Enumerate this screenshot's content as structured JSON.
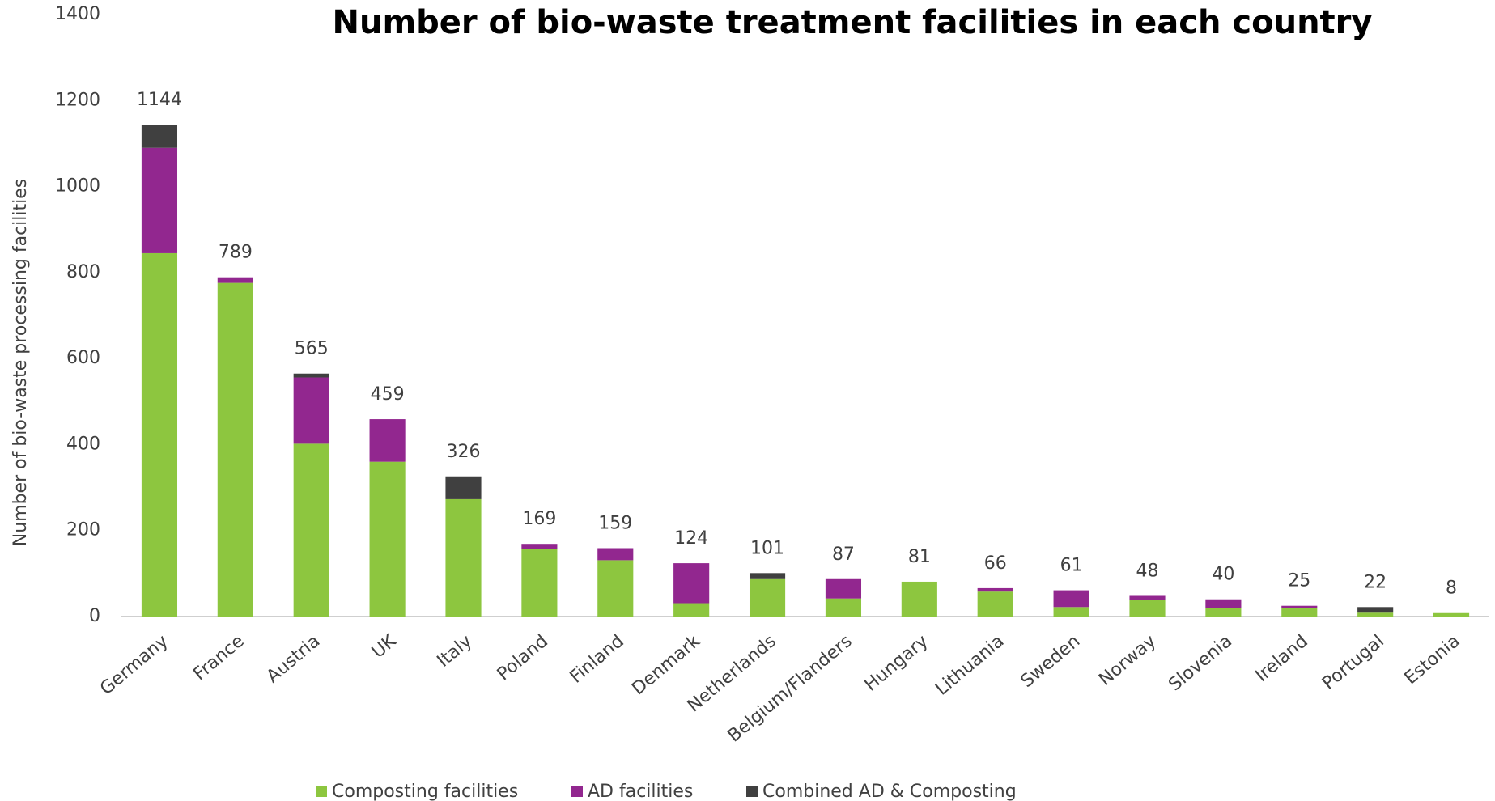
{
  "chart_data": {
    "type": "stacked_bar",
    "title": "Number of bio-waste treatment facilities in each country",
    "y_label": "Number of bio-waste processing facilities",
    "categories": [
      "Germany",
      "France",
      "Austria",
      "UK",
      "Italy",
      "Poland",
      "Finland",
      "Denmark",
      "Netherlands",
      "Belgium/Flanders",
      "Hungary",
      "Lithuania",
      "Sweden",
      "Norway",
      "Slovenia",
      "Ireland",
      "Portugal",
      "Estonia"
    ],
    "series": [
      {
        "name": "Composting facilities",
        "color": "#8dc63f",
        "values": [
          845,
          776,
          402,
          360,
          273,
          158,
          131,
          31,
          87,
          42,
          81,
          58,
          22,
          38,
          20,
          20,
          9,
          8
        ]
      },
      {
        "name": "AD facilities",
        "color": "#92278f",
        "values": [
          245,
          13,
          154,
          99,
          0,
          11,
          28,
          93,
          0,
          45,
          0,
          8,
          39,
          10,
          20,
          5,
          0,
          0
        ]
      },
      {
        "name": "Combined AD & Composting",
        "color": "#404040",
        "values": [
          54,
          0,
          9,
          0,
          53,
          0,
          0,
          0,
          14,
          0,
          0,
          0,
          0,
          0,
          0,
          0,
          13,
          0
        ]
      }
    ],
    "totals": [
      1144,
      789,
      565,
      459,
      326,
      169,
      159,
      124,
      101,
      87,
      81,
      66,
      61,
      48,
      40,
      25,
      22,
      8
    ],
    "ylim": [
      0,
      1400
    ],
    "yticks": [
      0,
      200,
      400,
      600,
      800,
      1000,
      1200,
      1400
    ],
    "grid": false,
    "legend": "bottom"
  }
}
